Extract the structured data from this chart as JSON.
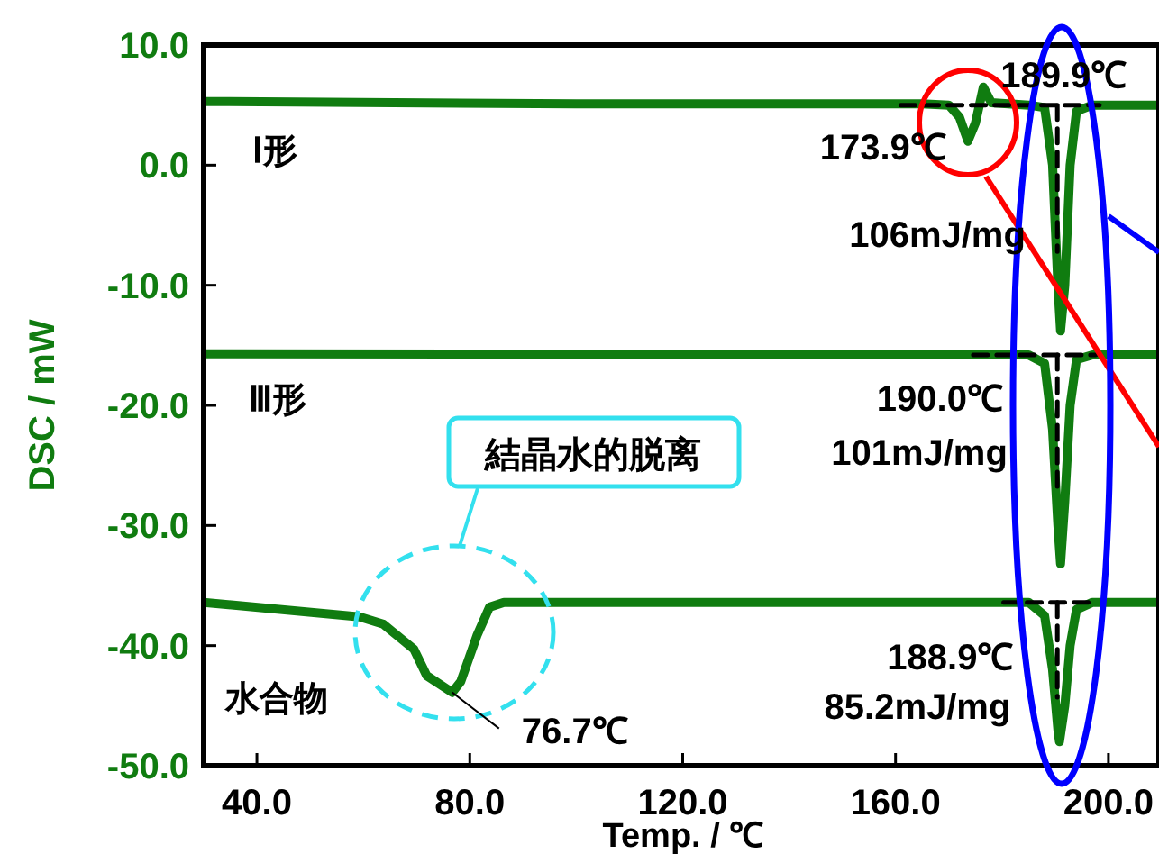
{
  "chart_data": {
    "type": "line",
    "xlabel": "Temp. / ℃",
    "ylabel": "DSC / mW",
    "xlim": [
      30,
      209.5
    ],
    "ylim": [
      -50,
      10
    ],
    "xticks": [
      {
        "value": 40,
        "label": "40.0"
      },
      {
        "value": 80,
        "label": "80.0"
      },
      {
        "value": 120,
        "label": "120.0"
      },
      {
        "value": 160,
        "label": "160.0"
      },
      {
        "value": 200,
        "label": "200.0"
      }
    ],
    "yticks": [
      {
        "value": 10,
        "label": "10.0"
      },
      {
        "value": 0,
        "label": "0.0"
      },
      {
        "value": -10,
        "label": "-10.0"
      },
      {
        "value": -20,
        "label": "-20.0"
      },
      {
        "value": -30,
        "label": "-30.0"
      },
      {
        "value": -40,
        "label": "-40.0"
      },
      {
        "value": -50,
        "label": "-50.0"
      }
    ],
    "series": [
      {
        "name": "Ⅰ形",
        "color": "#107c10",
        "x": [
          30,
          100,
          165,
          170,
          172,
          173.6,
          175,
          176.5,
          178,
          185,
          188,
          189.5,
          190.5,
          191,
          191.8,
          192.8,
          194,
          197,
          209.5
        ],
        "values": [
          5.3,
          5.1,
          5.1,
          5.0,
          4.0,
          2.0,
          3.5,
          6.5,
          5.2,
          5.0,
          4.8,
          0,
          -10,
          -13.8,
          -10,
          0,
          4.5,
          5.0,
          5.0
        ]
      },
      {
        "name": "Ⅲ形",
        "color": "#107c10",
        "x": [
          30,
          185,
          188,
          189.5,
          190.5,
          191,
          191.8,
          192.8,
          194,
          197,
          209.5
        ],
        "values": [
          -15.7,
          -15.8,
          -16.5,
          -22,
          -30,
          -33.2,
          -28,
          -20,
          -16.2,
          -15.8,
          -15.8
        ]
      },
      {
        "name": "水合物",
        "color": "#107c10",
        "x": [
          30,
          59.3,
          63.7,
          69.5,
          71.9,
          76.7,
          78.3,
          81.4,
          83.7,
          86.4,
          185,
          188,
          189.5,
          190.5,
          190.8,
          191.8,
          192.8,
          194,
          197,
          209.5
        ],
        "values": [
          -36.4,
          -37.6,
          -38.2,
          -40.3,
          -42.5,
          -43.9,
          -43.0,
          -39.1,
          -36.8,
          -36.4,
          -36.4,
          -37.5,
          -42,
          -47,
          -48.0,
          -45,
          -40,
          -37,
          -36.4,
          -36.4
        ]
      },
      {
        "color": "#000000",
        "line_style": "dashed",
        "x": [
          161,
          198.3
        ],
        "values": [
          5.0,
          5.0
        ]
      },
      {
        "color": "#000000",
        "line_style": "dashed",
        "x": [
          190.4,
          190.4
        ],
        "values": [
          5.0,
          -7.2
        ]
      },
      {
        "color": "#000000",
        "line_style": "dashed",
        "x": [
          174.6,
          197.6
        ],
        "values": [
          -15.8,
          -15.8
        ]
      },
      {
        "color": "#000000",
        "line_style": "dashed",
        "x": [
          190.4,
          190.4
        ],
        "values": [
          -15.8,
          -27
        ]
      },
      {
        "color": "#000000",
        "line_style": "dashed",
        "x": [
          180.3,
          197.3
        ],
        "values": [
          -36.4,
          -36.4
        ]
      },
      {
        "color": "#000000",
        "line_style": "dashed",
        "x": [
          190.4,
          190.4
        ],
        "values": [
          -36.4,
          -44.3
        ]
      }
    ],
    "annotations": [
      {
        "text": "189.9℃",
        "x": 189.9,
        "y": 5.0
      },
      {
        "text": "173.9℃",
        "x": 173.9,
        "y": 2.0
      },
      "106mJ/mg",
      {
        "text": "190.0℃",
        "x": 190.0,
        "y": -15.8
      },
      "101mJ/mg",
      {
        "text": "188.9℃",
        "x": 188.9,
        "y": -36.4
      },
      "85.2mJ/mg",
      {
        "text": "76.7℃",
        "x": 76.7,
        "y": -43.9
      },
      "結晶水的脱离"
    ]
  }
}
